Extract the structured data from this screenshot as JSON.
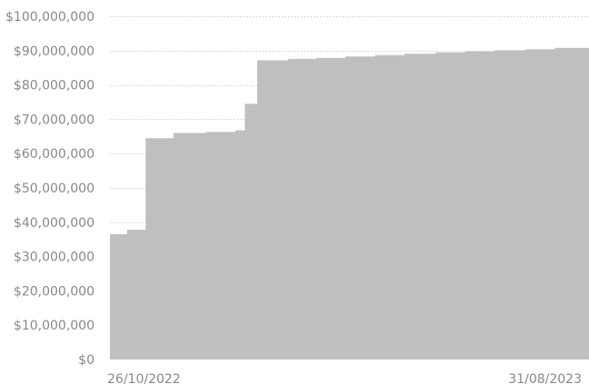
{
  "chart_data": {
    "type": "area",
    "step": true,
    "title": "",
    "xlabel": "",
    "ylabel": "",
    "ylim": [
      0,
      100000000
    ],
    "y_ticks": [
      0,
      10000000,
      20000000,
      30000000,
      40000000,
      50000000,
      60000000,
      70000000,
      80000000,
      90000000,
      100000000
    ],
    "y_tick_labels": [
      "$0",
      "$10,000,000",
      "$20,000,000",
      "$30,000,000",
      "$40,000,000",
      "$50,000,000",
      "$60,000,000",
      "$70,000,000",
      "$80,000,000",
      "$90,000,000",
      "$100,000,000"
    ],
    "x_range": [
      "26/10/2022",
      "31/08/2023"
    ],
    "x_tick_labels": [
      "26/10/2022",
      "31/08/2023"
    ],
    "x": [
      "26/10/2022",
      "06/11/2022",
      "18/11/2022",
      "06/12/2022",
      "27/12/2022",
      "15/01/2023",
      "21/01/2023",
      "29/01/2023",
      "18/02/2023",
      "08/03/2023",
      "27/03/2023",
      "15/04/2023",
      "04/05/2023",
      "24/05/2023",
      "12/06/2023",
      "01/07/2023",
      "21/07/2023",
      "09/08/2023",
      "31/08/2023"
    ],
    "values": [
      36500000,
      37800000,
      64500000,
      66000000,
      66300000,
      66800000,
      74500000,
      87200000,
      87600000,
      87900000,
      88300000,
      88700000,
      89100000,
      89500000,
      89800000,
      90100000,
      90400000,
      90800000,
      90800000
    ],
    "grid": true,
    "colors": {
      "fill": "#bfbfbf",
      "grid": "#cfcfcf",
      "tick_text": "#888888"
    }
  }
}
